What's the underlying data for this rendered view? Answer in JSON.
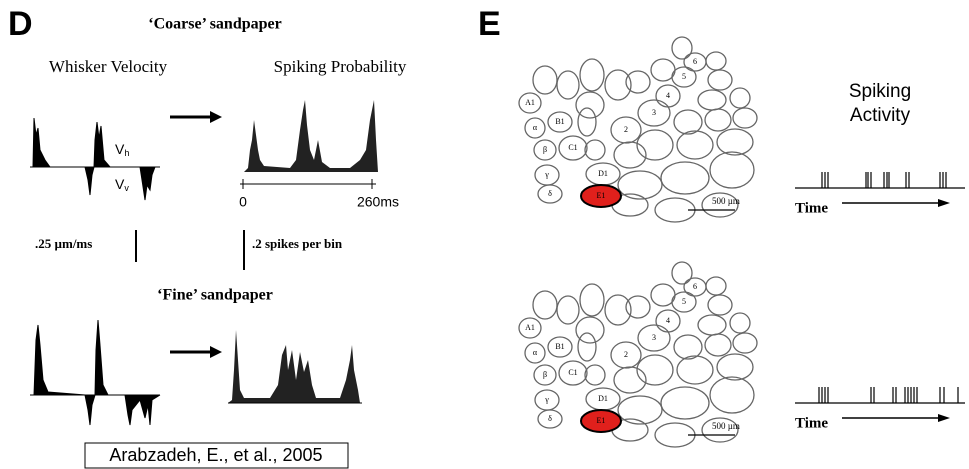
{
  "panel_d": {
    "label": "D",
    "coarse_title": "‘Coarse’ sandpaper",
    "velocity_label": "Whisker Velocity",
    "spiking_label": "Spiking Probability",
    "vh": "V",
    "vh_sub": "h",
    "vv": "V",
    "vv_sub": "v",
    "axis_start": "0",
    "axis_end": "260ms",
    "velocity_scale": ".25 µm/ms",
    "spike_scale": ".2 spikes per bin",
    "fine_title": "‘Fine’ sandpaper",
    "citation": "Arabzadeh, E., et al., 2005"
  },
  "panel_e": {
    "label": "E",
    "activity_title": [
      "Spiking",
      "Activity"
    ],
    "maps": [
      {
        "barrels": [
          "A1",
          "α",
          "B1",
          "β",
          "C1",
          "γ",
          "D1",
          "δ",
          "E1",
          "2",
          "3",
          "4",
          "5",
          "6"
        ],
        "scale": "500 µm",
        "time": "Time"
      },
      {
        "barrels": [
          "A1",
          "α",
          "B1",
          "β",
          "C1",
          "γ",
          "D1",
          "δ",
          "E1",
          "2",
          "3",
          "4",
          "5",
          "6"
        ],
        "scale": "500 µm",
        "time": "Time"
      }
    ]
  }
}
